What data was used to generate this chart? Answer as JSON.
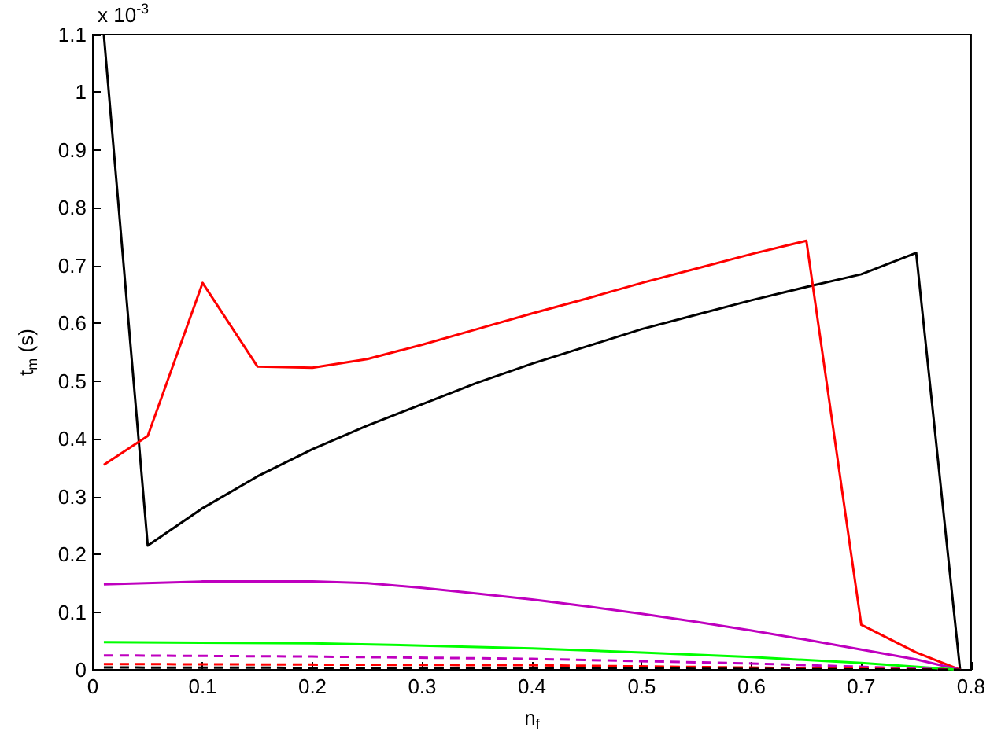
{
  "chart_data": {
    "type": "line",
    "xlabel": "n$_{f}$",
    "ylabel": "t$_{m}$ (s)",
    "annotations": [
      "x 10$^{-3}$"
    ],
    "xlim": [
      0,
      0.8
    ],
    "ylim": [
      0,
      1.1
    ],
    "xticks": [
      0,
      0.1,
      0.2,
      0.3,
      0.4,
      0.5,
      0.6,
      0.7,
      0.8
    ],
    "yticks": [
      0,
      0.1,
      0.2,
      0.3,
      0.4,
      0.5,
      0.6,
      0.7,
      0.8,
      0.9,
      1,
      1.1
    ],
    "grid": false,
    "marker": "none",
    "series": [
      {
        "color": "#000000",
        "line_style": "solid",
        "x": [
          0.01,
          0.05,
          0.1,
          0.15,
          0.2,
          0.25,
          0.3,
          0.35,
          0.4,
          0.45,
          0.5,
          0.55,
          0.6,
          0.65,
          0.7,
          0.75,
          0.79
        ],
        "values": [
          1.1,
          0.215,
          0.28,
          0.335,
          0.382,
          0.423,
          0.46,
          0.497,
          0.53,
          0.56,
          0.59,
          0.615,
          0.64,
          0.663,
          0.685,
          0.722,
          0
        ]
      },
      {
        "color": "#ff0000",
        "line_style": "solid",
        "x": [
          0.01,
          0.05,
          0.1,
          0.15,
          0.2,
          0.25,
          0.3,
          0.35,
          0.4,
          0.45,
          0.5,
          0.55,
          0.6,
          0.65,
          0.7,
          0.75,
          0.79
        ],
        "values": [
          0.355,
          0.405,
          0.67,
          0.525,
          0.523,
          0.538,
          0.563,
          0.59,
          0.617,
          0.643,
          0.67,
          0.695,
          0.72,
          0.743,
          0.078,
          0.03,
          0
        ]
      },
      {
        "color": "#bf00bf",
        "line_style": "solid",
        "x": [
          0.01,
          0.1,
          0.2,
          0.25,
          0.3,
          0.35,
          0.4,
          0.45,
          0.5,
          0.55,
          0.6,
          0.65,
          0.7,
          0.75,
          0.79
        ],
        "values": [
          0.148,
          0.153,
          0.153,
          0.15,
          0.142,
          0.132,
          0.122,
          0.11,
          0.097,
          0.083,
          0.068,
          0.052,
          0.035,
          0.018,
          0
        ]
      },
      {
        "color": "#00ff00",
        "line_style": "solid",
        "x": [
          0.01,
          0.2,
          0.3,
          0.4,
          0.5,
          0.6,
          0.7,
          0.79
        ],
        "values": [
          0.048,
          0.046,
          0.042,
          0.037,
          0.03,
          0.022,
          0.012,
          0
        ]
      },
      {
        "color": "#bf00bf",
        "line_style": "dashed",
        "x": [
          0.01,
          0.2,
          0.4,
          0.6,
          0.79
        ],
        "values": [
          0.025,
          0.023,
          0.019,
          0.011,
          0
        ]
      },
      {
        "color": "#ff0000",
        "line_style": "dashed",
        "x": [
          0.01,
          0.4,
          0.79
        ],
        "values": [
          0.01,
          0.008,
          0
        ]
      },
      {
        "color": "#000000",
        "line_style": "dashed",
        "x": [
          0.01,
          0.4,
          0.79
        ],
        "values": [
          0.004,
          0.003,
          0
        ]
      }
    ]
  }
}
